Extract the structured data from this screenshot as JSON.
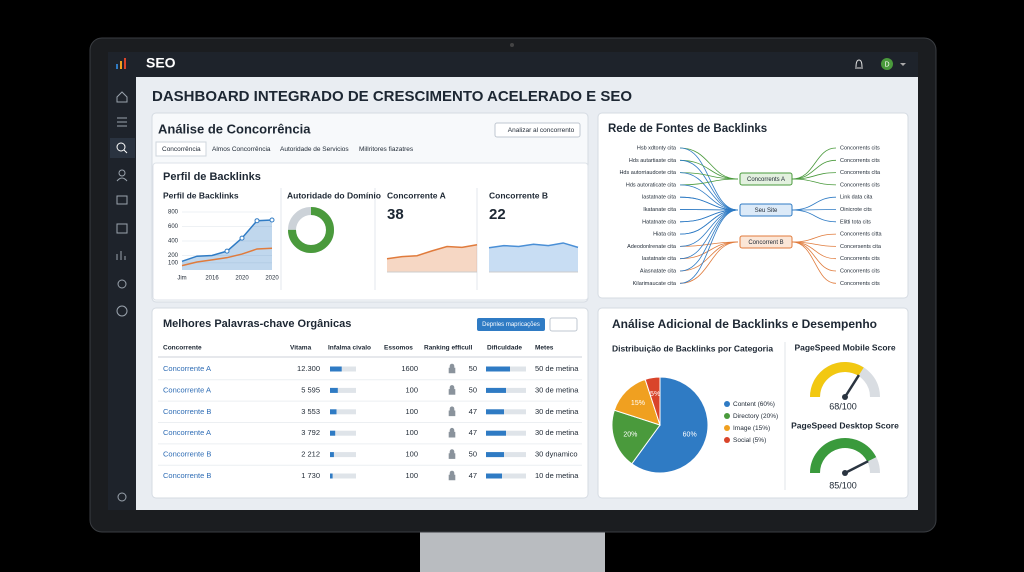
{
  "app": {
    "name": "SEO",
    "avatar": "D"
  },
  "title": "DASHBOARD INTEGRADO DE CRESCIMENTO ACELERADO E SEO",
  "competition": {
    "title": "Análise de Concorrência",
    "button": "Analizar al concorrento",
    "tabs": [
      "Concorrência",
      "Almos Concorrência",
      "Autoridade de Servicios",
      "Millritores fiazatres"
    ],
    "section_title": "Perfil de Backlinks",
    "profile": {
      "type": "line",
      "title": "Perfil de Backlinks",
      "categories": [
        "Jim",
        null,
        "2016",
        null,
        "2020",
        null,
        "2020"
      ],
      "ylim": [
        0,
        800
      ],
      "yticks": [
        100,
        200,
        400,
        600,
        800
      ],
      "series": [
        {
          "color": "#2f7bc4",
          "values": [
            120,
            190,
            200,
            260,
            440,
            680,
            690
          ]
        },
        {
          "color": "#e07b3c",
          "values": [
            60,
            110,
            140,
            170,
            220,
            290,
            300
          ]
        }
      ]
    },
    "authority": {
      "type": "donut",
      "title": "Autoridade do Domínio",
      "value": 0.75,
      "color": "#4a9a3c"
    },
    "competitor_a": {
      "type": "area",
      "title": "Concorrente A",
      "value": 38,
      "ylim": [
        0,
        100
      ],
      "values": [
        30,
        35,
        37,
        48,
        58,
        56,
        62
      ],
      "color": "#e07b3c"
    },
    "competitor_b": {
      "type": "area",
      "title": "Concorrente B",
      "value": 22,
      "ylim": [
        0,
        100
      ],
      "values": [
        55,
        60,
        58,
        63,
        60,
        66,
        56
      ],
      "color": "#4a8fd6"
    }
  },
  "keywords": {
    "title": "Melhores Palavras-chave Orgânicas",
    "button": "Depnles mapricações",
    "columns": [
      "Concorrente",
      "Vitama",
      "Infalma civalo",
      "Essomos",
      "Ranking efficull",
      "Dificuldade",
      "Metes"
    ],
    "rows": [
      {
        "name": "Concorrente A",
        "volume": "12.300",
        "traffic": 0.45,
        "results": "1600",
        "rank": "50",
        "difficulty": 0.6,
        "goal": "50 de metina"
      },
      {
        "name": "Concorrente A",
        "volume": "5 595",
        "traffic": 0.3,
        "results": "100",
        "rank": "50",
        "difficulty": 0.5,
        "goal": "30 de metina"
      },
      {
        "name": "Concorrente B",
        "volume": "3 553",
        "traffic": 0.25,
        "results": "100",
        "rank": "47",
        "difficulty": 0.45,
        "goal": "30 de metina"
      },
      {
        "name": "Concorrente A",
        "volume": "3 792",
        "traffic": 0.2,
        "results": "100",
        "rank": "47",
        "difficulty": 0.5,
        "goal": "30 de metina"
      },
      {
        "name": "Concorrente B",
        "volume": "2 212",
        "traffic": 0.15,
        "results": "100",
        "rank": "50",
        "difficulty": 0.45,
        "goal": "30 dynamico"
      },
      {
        "name": "Concorrente B",
        "volume": "1 730",
        "traffic": 0.1,
        "results": "100",
        "rank": "47",
        "difficulty": 0.4,
        "goal": "10 de metina"
      }
    ]
  },
  "network": {
    "title": "Rede de Fontes de Backlinks",
    "sources": [
      "Hsb xdtonty cita",
      "Hds autartiaste cita",
      "Hds autorriaudcete cita",
      "Hds autoraticate cita",
      "Iastatnate cita",
      "Ikatanate cita",
      "Hatatnate cita",
      "Hiata cita",
      "Adeodonlrenate cita",
      "Iastatnate cita",
      "Aiasnatate cita",
      "Kilarimaucate cita"
    ],
    "hubs": [
      "Concorrents A",
      "Seu Site",
      "Concorrent B"
    ],
    "targets": [
      "Concorrents cits",
      "Concorrents cits",
      "Concorrents clta",
      "Concorrents cits",
      "Link data cita",
      "Oinicrote cits",
      "Elitti tota cits",
      "Concorrents citta",
      "Concersents cita",
      "Concorrents cits",
      "Concorrents cits",
      "Concorrents cits"
    ]
  },
  "analysis": {
    "title": "Análise Adicional de Backlinks e Desempenho",
    "distribution": {
      "type": "pie",
      "title": "Distribuição de Backlinks por Categoria",
      "values": [
        60,
        20,
        15,
        5
      ],
      "value_labels": [
        "60%",
        "20%",
        "15%",
        "5%"
      ],
      "legend": [
        "Content (60%)",
        "Directory (20%)",
        "Image (15%)",
        "Social (5%)"
      ],
      "colors": [
        "#2f7bc4",
        "#4a9a3c",
        "#f0a020",
        "#d9442a"
      ]
    },
    "gauges": [
      {
        "title": "PageSpeed Mobile Score",
        "value": 68,
        "value_label": "68/100",
        "max": 100,
        "color": "#f2c811"
      },
      {
        "title": "PageSpeed Desktop Score",
        "value": 85,
        "value_label": "85/100",
        "max": 100,
        "color": "#3a9a3c"
      }
    ]
  }
}
